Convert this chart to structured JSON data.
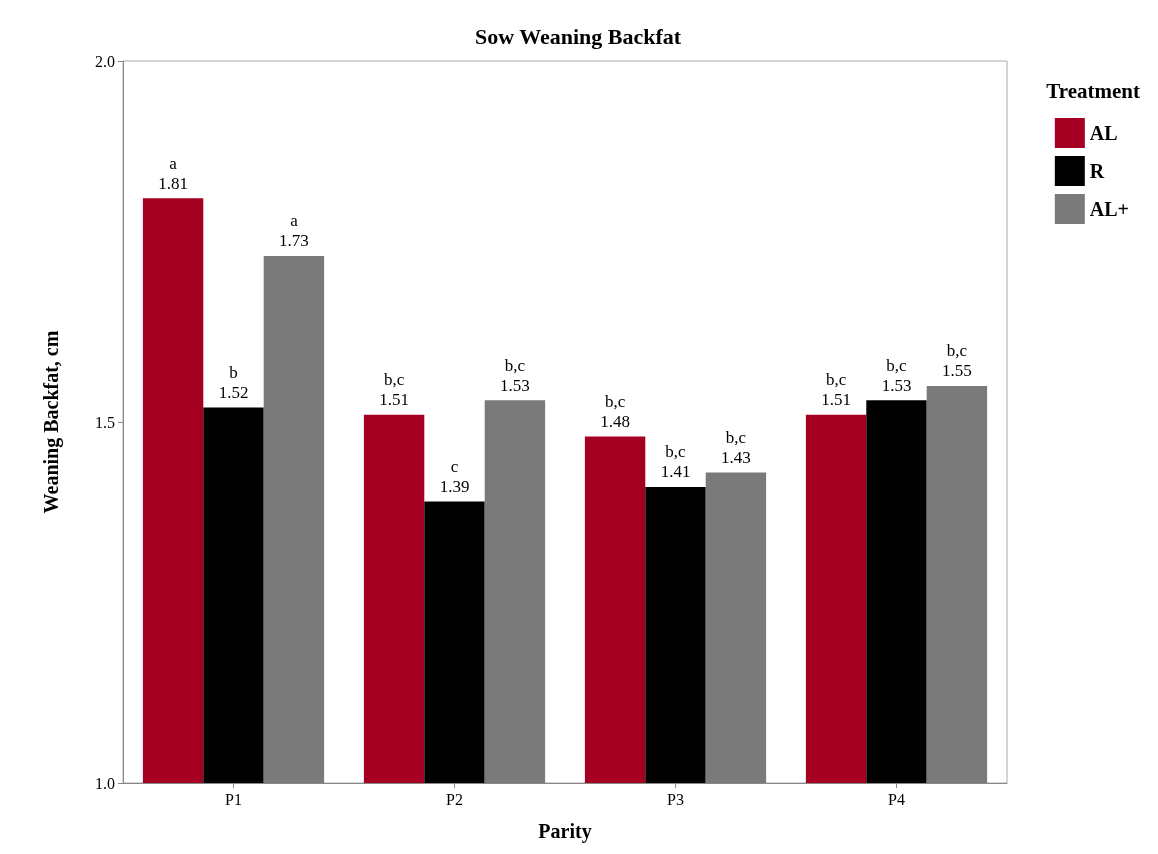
{
  "chart_data": {
    "type": "bar",
    "title": "Sow Weaning Backfat",
    "xlabel": "Parity",
    "ylabel": "Weaning Backfat, cm",
    "legend_title": "Treatment",
    "categories": [
      "P1",
      "P2",
      "P3",
      "P4"
    ],
    "series": [
      {
        "name": "AL",
        "color": "#a50021",
        "values": [
          1.81,
          1.51,
          1.48,
          1.51
        ],
        "value_labels": [
          "a\n1.81",
          "b,c\n1.51",
          "b,c\n1.48",
          "b,c\n1.51"
        ]
      },
      {
        "name": "R",
        "color": "#000000",
        "values": [
          1.52,
          1.39,
          1.41,
          1.53
        ],
        "value_labels": [
          "b\n1.52",
          "c\n1.39",
          "b,c\n1.41",
          "b,c\n1.53"
        ]
      },
      {
        "name": "AL+",
        "color": "#7a7a7a",
        "values": [
          1.73,
          1.53,
          1.43,
          1.55
        ],
        "value_labels": [
          "a\n1.73",
          "b,c\n1.53",
          "b,c\n1.43",
          "b,c\n1.55"
        ]
      }
    ],
    "ylim": [
      1.0,
      2.0
    ],
    "yticks": [
      {
        "value": 1.0,
        "label": "1.0"
      },
      {
        "value": 1.5,
        "label": "1.5"
      },
      {
        "value": 2.0,
        "label": "2.0"
      }
    ],
    "grid": false,
    "legend": "top right"
  }
}
